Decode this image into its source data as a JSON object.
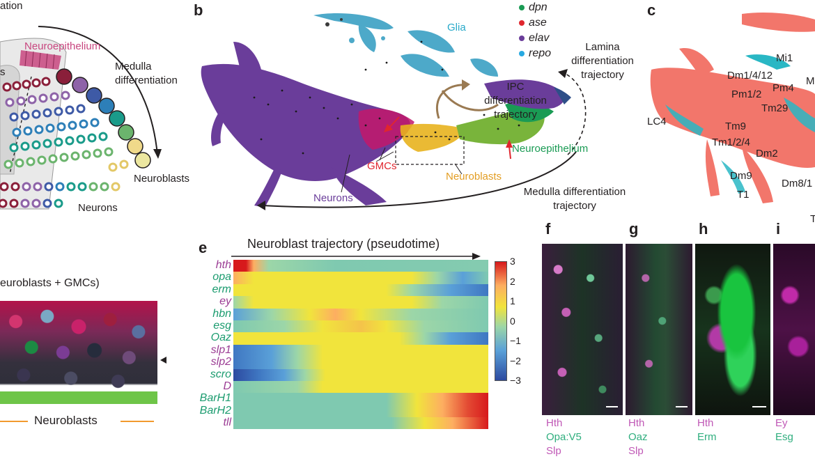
{
  "panel_a": {
    "title_fragment": "ation",
    "neuroepithelium": "Neuroepithelium",
    "medulla_differentiation": "Medulla differentiation",
    "neuroblasts": "Neuroblasts",
    "neurons": "Neurons",
    "left_fragment": "s",
    "colors": {
      "neuroepithelium": "#c8467f",
      "neurons_ring": "#8a1f3a"
    }
  },
  "panel_b": {
    "letter": "b",
    "legend": [
      {
        "gene": "dpn",
        "color": "#1a9b54"
      },
      {
        "gene": "ase",
        "color": "#e0262e"
      },
      {
        "gene": "elav",
        "color": "#6a3d9a"
      },
      {
        "gene": "repo",
        "color": "#27a9e1"
      }
    ],
    "glia": "Glia",
    "lamina": "Lamina differentiation trajectory",
    "ipc": "IPC differentiation trajectory",
    "neuroepithelium": "Neuroepithelium",
    "gmcs": "GMCs",
    "neuroblasts": "Neuroblasts",
    "neurons": "Neurons",
    "medulla": "Medulla differentiation trajectory"
  },
  "panel_c": {
    "letter": "c",
    "labels": [
      "Mi1",
      "Dm1/4/12",
      "Pm1/2",
      "Pm4",
      "Tm29",
      "LC4",
      "Tm9",
      "Tm1/2/4",
      "Dm2",
      "Dm9",
      "T1",
      "Dm8/1",
      "M",
      "T"
    ],
    "colors": {
      "main": "#f2766b",
      "alt": "#29b7c4"
    }
  },
  "panel_d": {
    "title": "euroblasts + GMCs)",
    "neuroblasts": "Neuroblasts",
    "line_color": "#f29a2e"
  },
  "panel_e": {
    "letter": "e",
    "title": "Neuroblast trajectory (pseudotime)",
    "genes": [
      {
        "name": "hth",
        "color": "#9b3c94"
      },
      {
        "name": "opa",
        "color": "#1a9b6e"
      },
      {
        "name": "erm",
        "color": "#1a9b6e"
      },
      {
        "name": "ey",
        "color": "#9b3c94"
      },
      {
        "name": "hbn",
        "color": "#1a9b6e"
      },
      {
        "name": "esg",
        "color": "#1a9b6e"
      },
      {
        "name": "Oaz",
        "color": "#1a9b6e"
      },
      {
        "name": "slp1",
        "color": "#9b3c94"
      },
      {
        "name": "slp2",
        "color": "#9b3c94"
      },
      {
        "name": "scro",
        "color": "#1a9b6e"
      },
      {
        "name": "D",
        "color": "#9b3c94"
      },
      {
        "name": "BarH1",
        "color": "#1a9b6e"
      },
      {
        "name": "BarH2",
        "color": "#1a9b6e"
      },
      {
        "name": "tll",
        "color": "#9b3c94"
      }
    ],
    "colorbar_ticks": [
      "3",
      "2",
      "1",
      "0",
      "−1",
      "−2",
      "−3"
    ],
    "heat_colors": {
      "high": "#d7191c",
      "mid_high": "#fdae61",
      "mid": "#f1e43c",
      "zero": "#7fc9b0",
      "low": "#5aa0d8",
      "lowest": "#2c4aa0"
    }
  },
  "panels_fghi": [
    {
      "letter": "f",
      "labels": [
        {
          "text": "Hth",
          "color": "#c058b6"
        },
        {
          "text": "Opa:V5",
          "color": "#2fae7e"
        },
        {
          "text": "Slp",
          "color": "#c058b6"
        }
      ]
    },
    {
      "letter": "g",
      "labels": [
        {
          "text": "Hth",
          "color": "#c058b6"
        },
        {
          "text": "Oaz",
          "color": "#2fae7e"
        },
        {
          "text": "Slp",
          "color": "#c058b6"
        }
      ]
    },
    {
      "letter": "h",
      "labels": [
        {
          "text": "Hth",
          "color": "#c058b6"
        },
        {
          "text": "Erm",
          "color": "#2fae7e"
        }
      ]
    },
    {
      "letter": "i",
      "labels": [
        {
          "text": "Ey",
          "color": "#c058b6"
        },
        {
          "text": "Esg",
          "color": "#2fae7e"
        }
      ]
    }
  ]
}
